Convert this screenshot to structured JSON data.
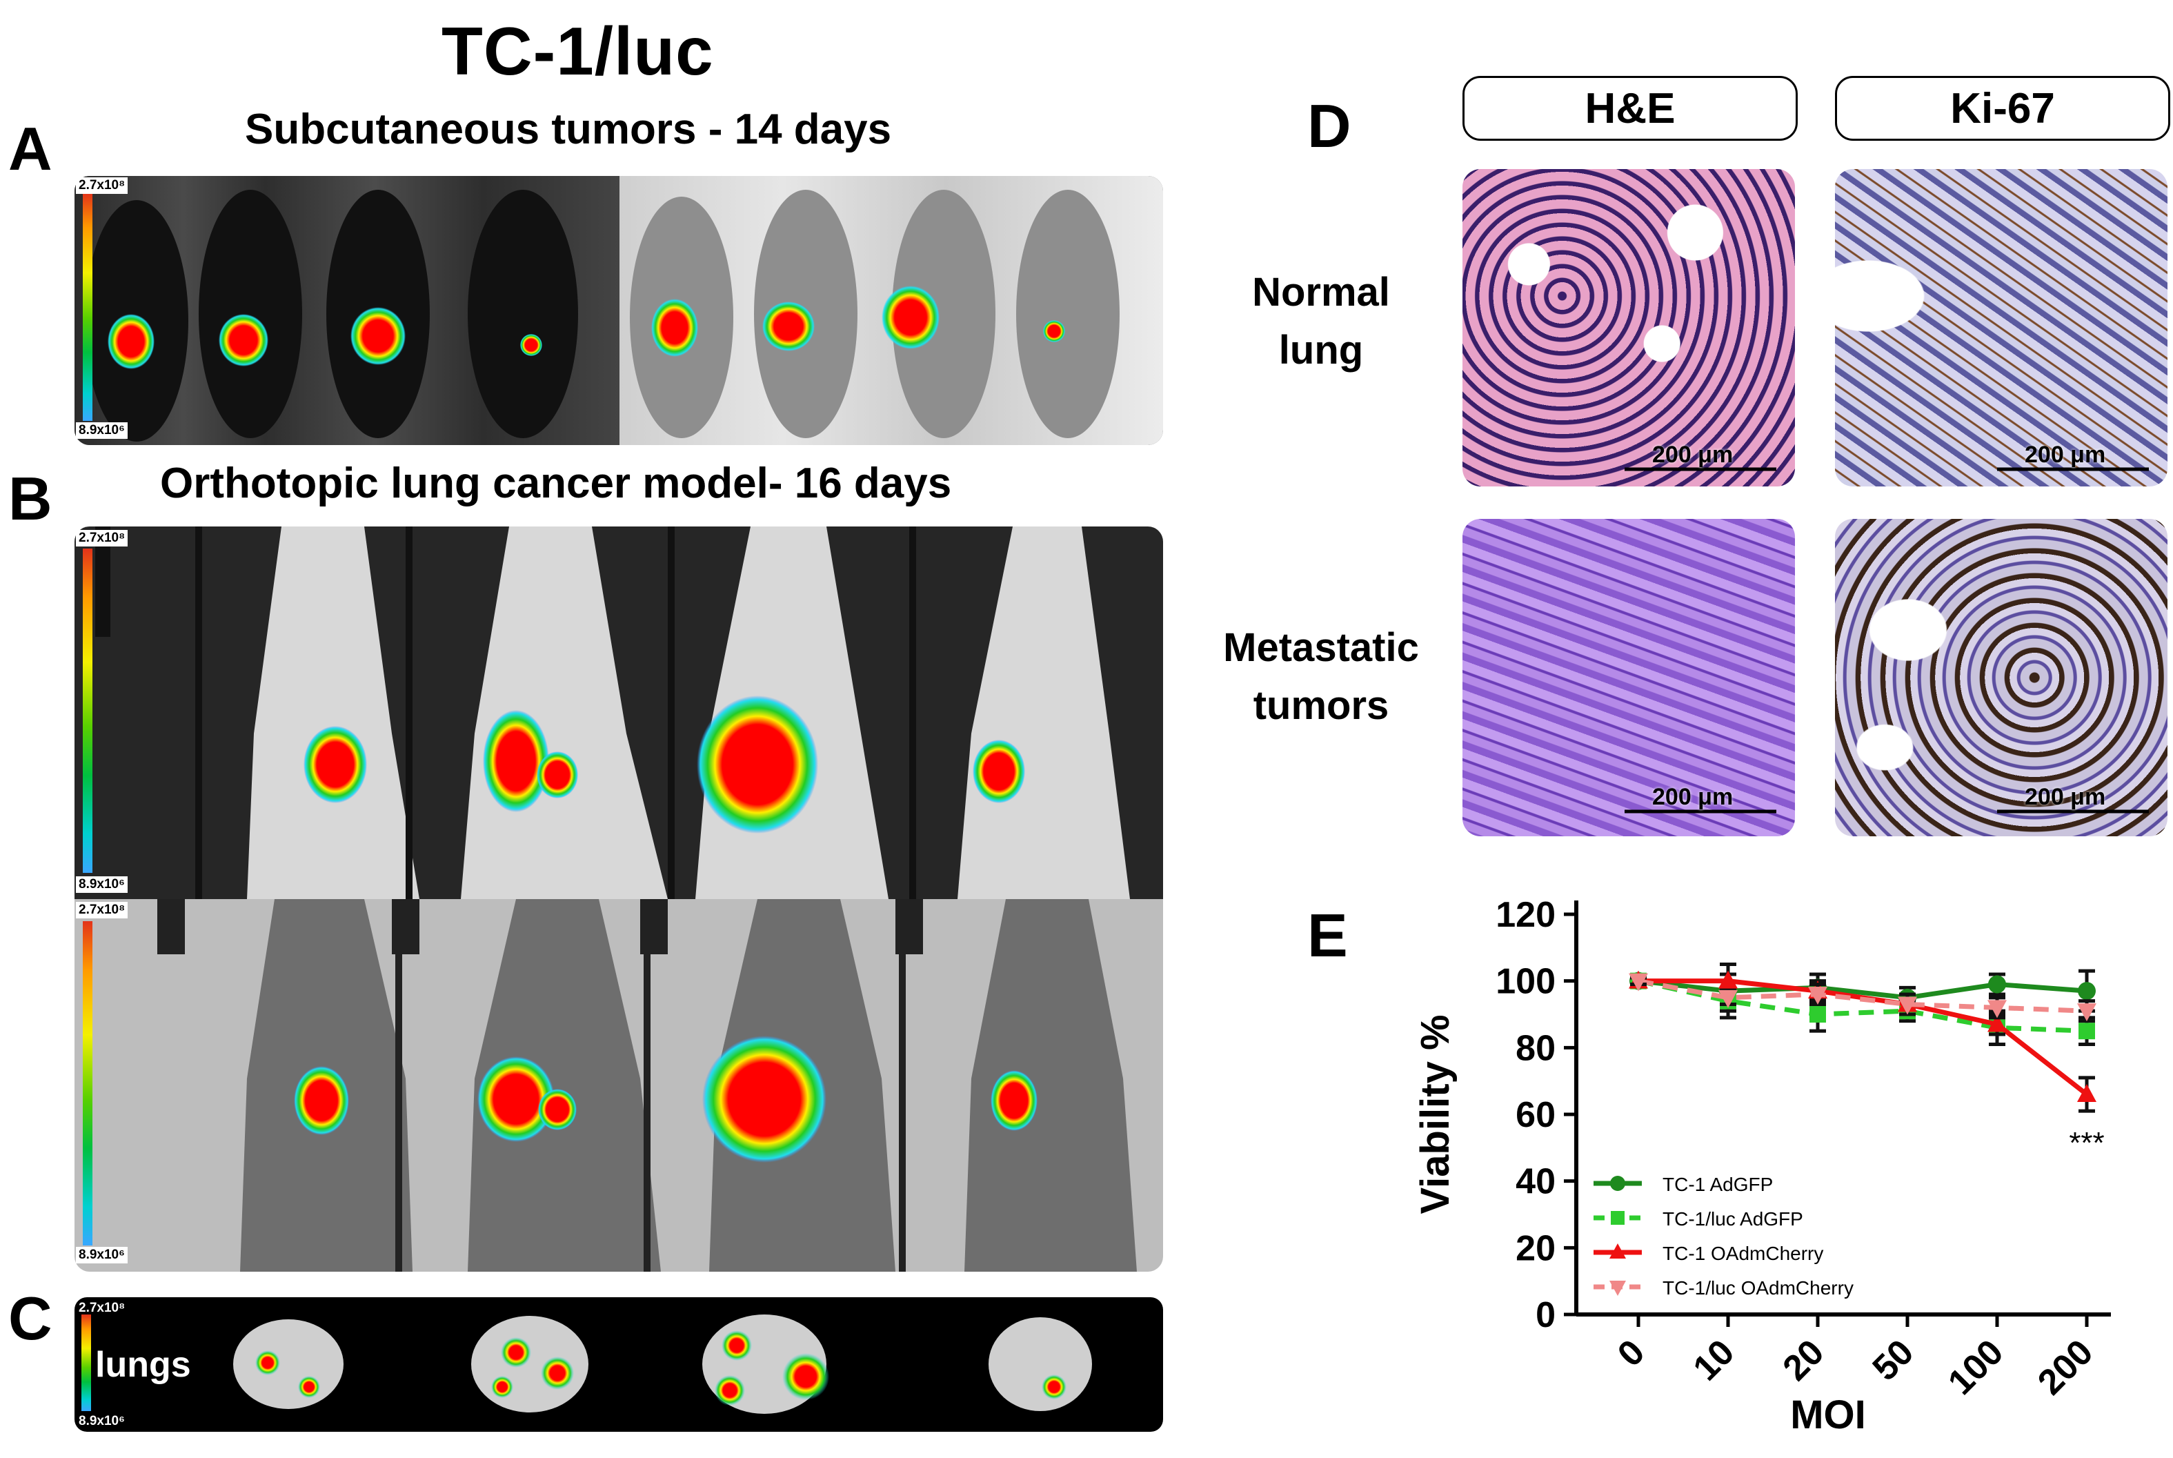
{
  "figure": {
    "main_title": "TC-1/luc",
    "panels": {
      "A": {
        "letter": "A",
        "subtitle": "Subcutaneous tumors - 14 days",
        "scale_max": "2.7x10⁸",
        "scale_min": "8.9x10⁶"
      },
      "B": {
        "letter": "B",
        "subtitle": "Orthotopic lung cancer model- 16 days",
        "scale_max": "2.7x10⁸",
        "scale_min": "8.9x10⁶",
        "scale2_max": "2.7x10⁸",
        "scale2_min": "8.9x10⁶"
      },
      "C": {
        "letter": "C",
        "organ_label": "lungs",
        "scale_max": "2.7x10⁸",
        "scale_min": "8.9x10⁶"
      },
      "D": {
        "letter": "D",
        "columns": [
          "H&E",
          "Ki-67"
        ],
        "rows": [
          "Normal lung",
          "Metastatic tumors"
        ],
        "scale_bar": "200 μm"
      },
      "E": {
        "letter": "E"
      }
    }
  },
  "colors": {
    "dark_green": "#1e8a1e",
    "light_green": "#2ecc2e",
    "red": "#ee1111",
    "pink": "#f08888"
  },
  "chart_data": {
    "type": "line",
    "xlabel": "MOI",
    "ylabel": "Viability %",
    "categories": [
      "0",
      "10",
      "20",
      "50",
      "100",
      "200"
    ],
    "ylim": [
      0,
      120
    ],
    "yticks": [
      "0",
      "20",
      "40",
      "60",
      "80",
      "100",
      "120"
    ],
    "annotation": "***",
    "legend_position": "bottom-left",
    "series": [
      {
        "name": "TC-1 AdGFP",
        "values": [
          100,
          97,
          98,
          95,
          99,
          97
        ],
        "err": [
          1,
          8,
          4,
          3,
          3,
          6
        ],
        "color": "#1e8a1e",
        "dashed": false,
        "marker": "circle"
      },
      {
        "name": "TC-1/luc AdGFP",
        "values": [
          100,
          94,
          90,
          91,
          86,
          85
        ],
        "err": [
          1,
          3,
          5,
          3,
          5,
          4
        ],
        "color": "#2ecc2e",
        "dashed": true,
        "marker": "square"
      },
      {
        "name": "TC-1 OAdmCherry",
        "values": [
          100,
          100,
          97,
          93,
          87,
          66
        ],
        "err": [
          1,
          2,
          3,
          3,
          3,
          5
        ],
        "color": "#ee1111",
        "dashed": false,
        "marker": "triangle-up"
      },
      {
        "name": "TC-1/luc OAdmCherry",
        "values": [
          100,
          95,
          96,
          93,
          92,
          91
        ],
        "err": [
          1,
          2,
          3,
          3,
          3,
          3
        ],
        "color": "#f08888",
        "dashed": true,
        "marker": "triangle-down"
      }
    ]
  }
}
